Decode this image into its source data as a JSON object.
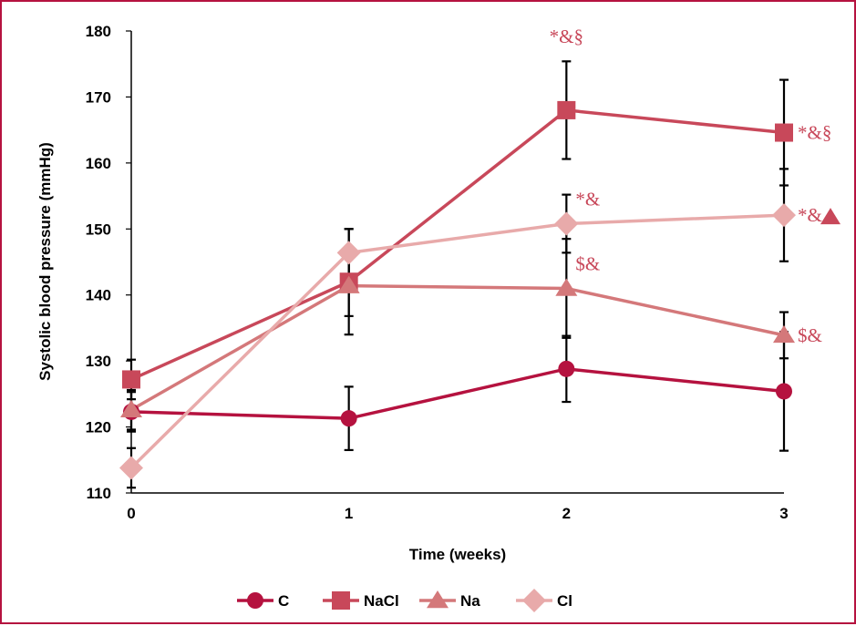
{
  "chart_data": {
    "type": "line",
    "xlabel": "Time (weeks)",
    "ylabel": "Systolic blood pressure (mmHg)",
    "x": [
      0,
      1,
      2,
      3
    ],
    "x_tick_labels": [
      "0",
      "1",
      "2",
      "3"
    ],
    "ylim": [
      110,
      180
    ],
    "y_tick_labels": [
      "110",
      "120",
      "130",
      "140",
      "150",
      "160",
      "170",
      "180"
    ],
    "grid": false,
    "legend_position": "bottom",
    "series": [
      {
        "name": "C",
        "marker": "circle",
        "color": "#b5123f",
        "values": [
          122.3,
          121.3,
          128.8,
          125.4
        ],
        "error": [
          3.0,
          4.8,
          5.0,
          9.0
        ]
      },
      {
        "name": "NaCl",
        "marker": "square",
        "color": "#c8485a",
        "values": [
          127.2,
          142.0,
          168.0,
          164.6
        ],
        "error": [
          3.0,
          8.0,
          7.4,
          8.0
        ]
      },
      {
        "name": "Na",
        "marker": "triangle",
        "color": "#d4787a",
        "values": [
          122.6,
          141.4,
          141.0,
          133.9
        ],
        "error": [
          3.0,
          4.6,
          7.5,
          3.5
        ]
      },
      {
        "name": "Cl",
        "marker": "diamond",
        "color": "#e8aaaa",
        "values": [
          113.8,
          146.4,
          150.8,
          152.1
        ],
        "error": [
          3.0,
          3.6,
          4.4,
          7.0
        ]
      }
    ],
    "annotations": [
      {
        "text": "*&§",
        "series": "NaCl",
        "x": 2,
        "color": "#c8485a"
      },
      {
        "text": "*&§",
        "series": "NaCl",
        "x": 3,
        "color": "#c8485a"
      },
      {
        "text": "*&",
        "series": "Cl",
        "x": 2,
        "color": "#c8485a"
      },
      {
        "text": "*&",
        "series": "Cl",
        "x": 3,
        "color": "#c8485a",
        "suffix_marker": "triangle"
      },
      {
        "text": "$&",
        "series": "Na",
        "x": 2,
        "color": "#c8485a"
      },
      {
        "text": "$&",
        "series": "Na",
        "x": 3,
        "color": "#c8485a"
      }
    ]
  }
}
